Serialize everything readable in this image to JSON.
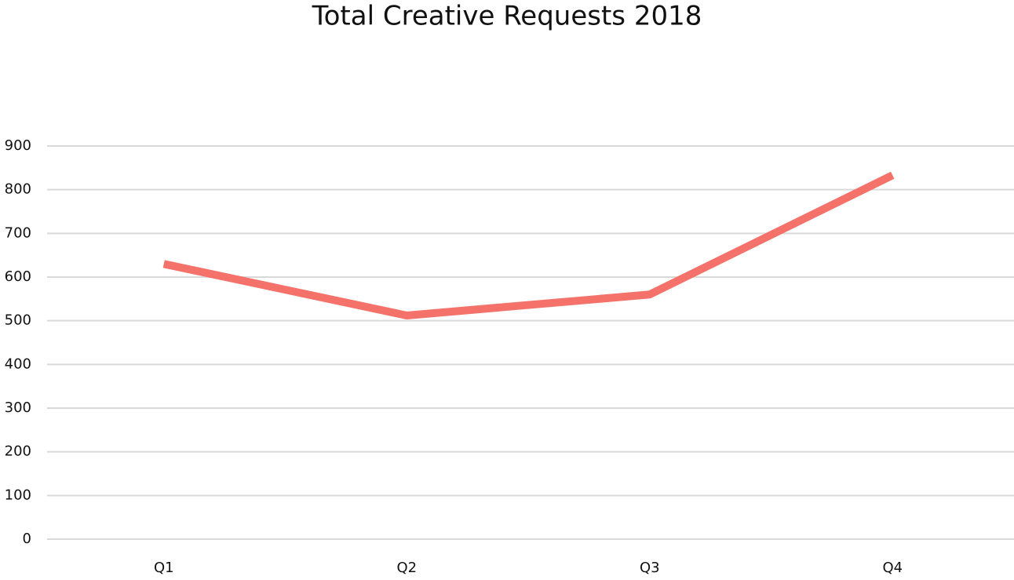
{
  "chart_data": {
    "type": "line",
    "title": "Total Creative Requests 2018",
    "categories": [
      "Q1",
      "Q2",
      "Q3",
      "Q4"
    ],
    "values": [
      630,
      512,
      560,
      833
    ],
    "color": "#f4726a",
    "ylim": [
      0,
      900
    ],
    "yticks": [
      0,
      100,
      200,
      300,
      400,
      500,
      600,
      700,
      800,
      900
    ],
    "grid": true
  }
}
